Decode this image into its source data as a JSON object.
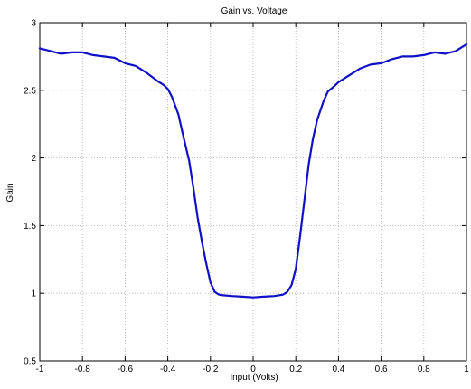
{
  "chart_data": {
    "type": "line",
    "title": "Gain vs. Voltage",
    "xlabel": "Input (Volts)",
    "ylabel": "Gain",
    "xlim": [
      -1,
      1
    ],
    "ylim": [
      0.5,
      3
    ],
    "xticks": [
      -1,
      -0.8,
      -0.6,
      -0.4,
      -0.2,
      0,
      0.2,
      0.4,
      0.6,
      0.8,
      1
    ],
    "xtick_labels": [
      "-1",
      "-0.8",
      "-0.6",
      "-0.4",
      "-0.2",
      "0",
      "0.2",
      "0.4",
      "0.6",
      "0.8",
      "1"
    ],
    "yticks": [
      0.5,
      1,
      1.5,
      2,
      2.5,
      3
    ],
    "ytick_labels": [
      "0.5",
      "1",
      "1.5",
      "2",
      "2.5",
      "3"
    ],
    "grid": true,
    "colors": {
      "line": "#1010c8",
      "grid": "#b4b4b4",
      "axes": "#000000"
    },
    "series": [
      {
        "x": [
          -1,
          -0.95,
          -0.9,
          -0.85,
          -0.8,
          -0.75,
          -0.7,
          -0.65,
          -0.6,
          -0.55,
          -0.5,
          -0.45,
          -0.42,
          -0.4,
          -0.38,
          -0.35,
          -0.33,
          -0.3,
          -0.28,
          -0.26,
          -0.24,
          -0.22,
          -0.2,
          -0.18,
          -0.16,
          -0.14,
          -0.1,
          -0.05,
          0,
          0.05,
          0.1,
          0.14,
          0.16,
          0.18,
          0.2,
          0.22,
          0.24,
          0.26,
          0.28,
          0.3,
          0.33,
          0.35,
          0.38,
          0.4,
          0.42,
          0.45,
          0.5,
          0.55,
          0.6,
          0.65,
          0.7,
          0.75,
          0.8,
          0.85,
          0.9,
          0.95,
          1
        ],
        "values": [
          2.81,
          2.79,
          2.77,
          2.78,
          2.78,
          2.76,
          2.75,
          2.74,
          2.7,
          2.68,
          2.63,
          2.57,
          2.54,
          2.51,
          2.45,
          2.32,
          2.18,
          1.98,
          1.78,
          1.56,
          1.38,
          1.22,
          1.08,
          1.01,
          0.99,
          0.985,
          0.98,
          0.975,
          0.97,
          0.975,
          0.98,
          0.99,
          1.01,
          1.06,
          1.18,
          1.42,
          1.68,
          1.95,
          2.14,
          2.28,
          2.42,
          2.49,
          2.53,
          2.56,
          2.58,
          2.61,
          2.66,
          2.69,
          2.7,
          2.73,
          2.75,
          2.75,
          2.76,
          2.78,
          2.77,
          2.79,
          2.84
        ]
      }
    ]
  }
}
